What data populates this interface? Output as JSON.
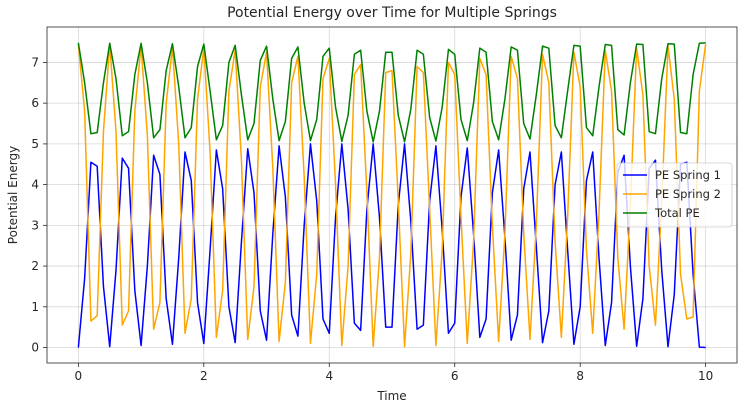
{
  "chart_data": {
    "type": "line",
    "title": "Potential Energy over Time for Multiple Springs",
    "xlabel": "Time",
    "ylabel": "Potential Energy",
    "xlim": [
      -0.5,
      10.5
    ],
    "ylim": [
      -0.38,
      7.87
    ],
    "xticks": [
      0,
      2,
      4,
      6,
      8,
      10
    ],
    "yticks": [
      0,
      1,
      2,
      3,
      4,
      5,
      6,
      7
    ],
    "grid": true,
    "legend_position": "center-right",
    "x": [
      0,
      0.1,
      0.2,
      0.3,
      0.4,
      0.5,
      0.6,
      0.7,
      0.8,
      0.9,
      1.0,
      1.1,
      1.2,
      1.3,
      1.4,
      1.5,
      1.6,
      1.7,
      1.8,
      1.9,
      2.0,
      2.1,
      2.2,
      2.3,
      2.4,
      2.5,
      2.6,
      2.7,
      2.8,
      2.9,
      3.0,
      3.1,
      3.2,
      3.3,
      3.4,
      3.5,
      3.6,
      3.7,
      3.8,
      3.9,
      4.0,
      4.1,
      4.2,
      4.3,
      4.4,
      4.5,
      4.6,
      4.7,
      4.8,
      4.9,
      5.0,
      5.1,
      5.2,
      5.3,
      5.4,
      5.5,
      5.6,
      5.7,
      5.8,
      5.9,
      6.0,
      6.1,
      6.2,
      6.3,
      6.4,
      6.5,
      6.6,
      6.7,
      6.8,
      6.9,
      7.0,
      7.1,
      7.2,
      7.3,
      7.4,
      7.5,
      7.6,
      7.7,
      7.8,
      7.9,
      8.0,
      8.1,
      8.2,
      8.3,
      8.4,
      8.5,
      8.6,
      8.7,
      8.8,
      8.9,
      9.0,
      9.1,
      9.2,
      9.3,
      9.4,
      9.5,
      9.6,
      9.7,
      9.8,
      9.9,
      10.0
    ],
    "series": [
      {
        "name": "PE Spring 1",
        "color": "#0000ff",
        "values": [
          0.0,
          1.7,
          4.55,
          4.45,
          1.5,
          0.02,
          1.9,
          4.65,
          4.4,
          1.4,
          0.05,
          2.0,
          4.72,
          4.25,
          1.2,
          0.08,
          2.2,
          4.8,
          4.1,
          1.1,
          0.1,
          2.4,
          4.85,
          3.9,
          1.0,
          0.12,
          2.6,
          4.88,
          3.8,
          0.9,
          0.18,
          2.8,
          4.95,
          3.7,
          0.8,
          0.28,
          3.0,
          5.0,
          3.6,
          0.7,
          0.35,
          3.2,
          5.0,
          3.4,
          0.6,
          0.42,
          3.4,
          5.0,
          3.2,
          0.5,
          0.5,
          3.5,
          5.0,
          3.1,
          0.45,
          0.55,
          3.6,
          4.95,
          2.9,
          0.35,
          0.6,
          3.7,
          4.9,
          2.8,
          0.25,
          0.7,
          3.8,
          4.85,
          2.7,
          0.18,
          0.8,
          3.9,
          4.8,
          2.5,
          0.12,
          0.9,
          4.0,
          4.8,
          2.4,
          0.08,
          1.0,
          4.1,
          4.8,
          2.2,
          0.05,
          1.1,
          4.3,
          4.72,
          2.0,
          0.03,
          1.2,
          4.4,
          4.6,
          1.9,
          0.02,
          1.3,
          4.5,
          4.55,
          1.8,
          0.01,
          0.0
        ]
      },
      {
        "name": "PE Spring 2",
        "color": "#ffa500",
        "values": [
          7.45,
          5.8,
          0.65,
          0.78,
          5.3,
          7.45,
          5.3,
          0.55,
          0.9,
          5.8,
          7.42,
          5.2,
          0.45,
          1.1,
          6.0,
          7.38,
          5.0,
          0.35,
          1.2,
          6.1,
          7.35,
          4.8,
          0.25,
          1.4,
          6.3,
          7.3,
          4.6,
          0.2,
          1.5,
          6.4,
          7.25,
          4.4,
          0.15,
          1.6,
          6.5,
          7.15,
          4.2,
          0.1,
          1.8,
          6.6,
          7.1,
          4.0,
          0.05,
          2.0,
          6.7,
          6.95,
          3.8,
          0.03,
          2.2,
          6.75,
          6.8,
          3.6,
          0.02,
          2.3,
          6.9,
          6.75,
          3.4,
          0.05,
          2.4,
          7.0,
          6.7,
          3.2,
          0.1,
          2.6,
          7.1,
          6.7,
          3.0,
          0.15,
          2.8,
          7.15,
          6.6,
          2.8,
          0.2,
          3.0,
          7.2,
          6.5,
          2.6,
          0.25,
          3.2,
          7.25,
          6.4,
          2.4,
          0.35,
          3.3,
          7.3,
          6.3,
          2.2,
          0.45,
          3.5,
          7.35,
          6.2,
          2.0,
          0.55,
          3.6,
          7.4,
          6.1,
          1.8,
          0.7,
          0.75,
          6.3,
          7.45
        ]
      },
      {
        "name": "Total PE",
        "color": "#008000",
        "values": [
          7.48,
          6.5,
          5.25,
          5.28,
          6.5,
          7.47,
          6.6,
          5.2,
          5.3,
          6.7,
          7.47,
          6.5,
          5.15,
          5.35,
          6.8,
          7.46,
          6.4,
          5.15,
          5.4,
          6.9,
          7.45,
          6.3,
          5.1,
          5.45,
          7.0,
          7.42,
          6.2,
          5.1,
          5.5,
          7.05,
          7.4,
          6.1,
          5.08,
          5.55,
          7.1,
          7.38,
          6.0,
          5.08,
          5.6,
          7.15,
          7.35,
          5.9,
          5.06,
          5.7,
          7.2,
          7.3,
          5.8,
          5.05,
          5.8,
          7.25,
          7.25,
          5.7,
          5.05,
          5.85,
          7.3,
          7.2,
          5.65,
          5.07,
          5.9,
          7.32,
          7.2,
          5.6,
          5.08,
          6.0,
          7.35,
          7.25,
          5.55,
          5.1,
          6.1,
          7.38,
          7.3,
          5.5,
          5.12,
          6.2,
          7.4,
          7.35,
          5.45,
          5.15,
          6.3,
          7.42,
          7.4,
          5.4,
          5.2,
          6.4,
          7.44,
          7.42,
          5.35,
          5.22,
          6.5,
          7.45,
          7.44,
          5.3,
          5.25,
          6.6,
          7.46,
          7.45,
          5.28,
          5.25,
          6.7,
          7.47,
          7.48
        ]
      }
    ]
  }
}
